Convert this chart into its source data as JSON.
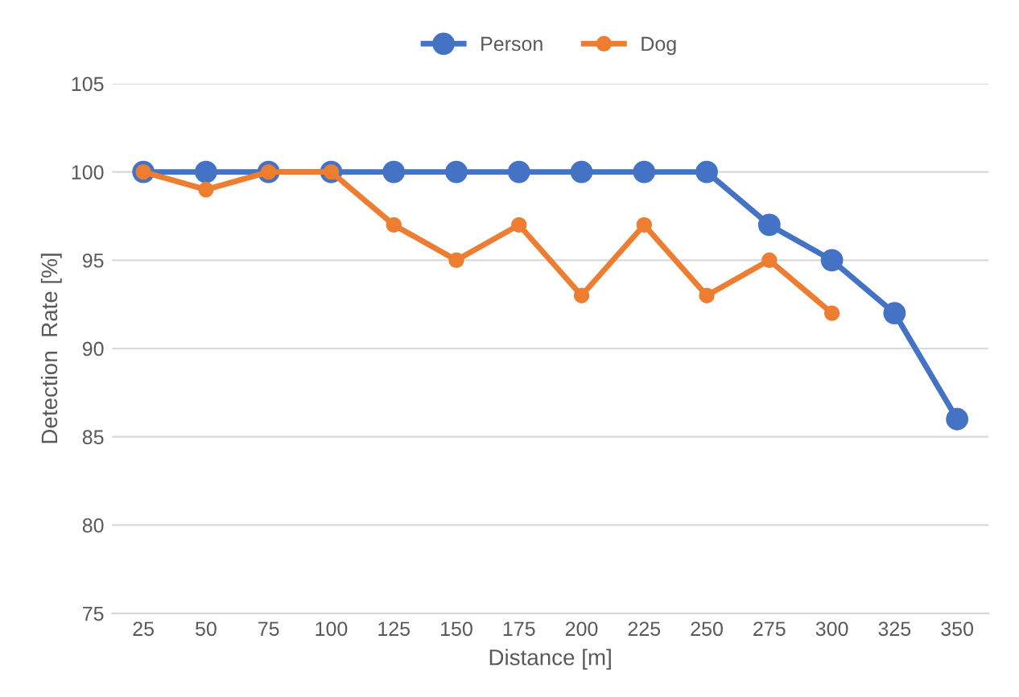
{
  "chart_data": {
    "type": "line",
    "xlabel": "Distance [m]",
    "ylabel": "Detection  Rate [%]",
    "categories": [
      "25",
      "50",
      "75",
      "100",
      "125",
      "150",
      "175",
      "200",
      "225",
      "250",
      "275",
      "300",
      "325",
      "350"
    ],
    "series": [
      {
        "name": "Person",
        "color": "#4472c4",
        "values": [
          100,
          100,
          100,
          100,
          100,
          100,
          100,
          100,
          100,
          100,
          97,
          95,
          92,
          86
        ]
      },
      {
        "name": "Dog",
        "color": "#ed7d31",
        "values": [
          100,
          99,
          100,
          100,
          97,
          95,
          97,
          93,
          97,
          93,
          95,
          92,
          null,
          null
        ]
      }
    ],
    "ylim": [
      75,
      105
    ],
    "yticks": [
      75,
      80,
      85,
      90,
      95,
      100,
      105
    ],
    "grid": "y",
    "legend": "top",
    "marker": "circle",
    "line_style": "solid"
  }
}
